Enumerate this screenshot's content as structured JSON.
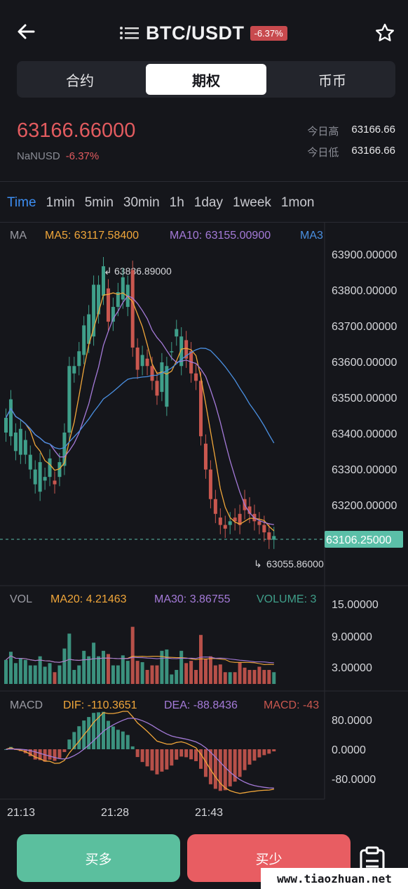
{
  "header": {
    "back_icon": "arrow-left-icon",
    "pair": "BTC/USDT",
    "change_badge": "-6.37%",
    "list_icon": "list-icon",
    "star_icon": "star-icon"
  },
  "segments": [
    {
      "label": "合约",
      "active": false
    },
    {
      "label": "期权",
      "active": true
    },
    {
      "label": "币币",
      "active": false
    }
  ],
  "ticker": {
    "last": "63166.66000",
    "quote_line": "NaNUSD",
    "change": "-6.37%",
    "high_label": "今日高",
    "high": "63166.66",
    "low_label": "今日低",
    "low": "63166.66"
  },
  "timeframes": [
    {
      "label": "Time",
      "active": true
    },
    {
      "label": "1min"
    },
    {
      "label": "5min"
    },
    {
      "label": "30min"
    },
    {
      "label": "1h"
    },
    {
      "label": "1day"
    },
    {
      "label": "1week"
    },
    {
      "label": "1mon"
    }
  ],
  "main_legend": {
    "ma": "MA",
    "ma5": "MA5: 63117.58400",
    "ma10": "MA10: 63155.00900",
    "ma30": "MA3"
  },
  "vol_legend": {
    "vol": "VOL",
    "ma20": "MA20: 4.21463",
    "ma30": "MA30: 3.86755",
    "volume": "VOLUME: 3"
  },
  "macd_legend": {
    "macd": "MACD",
    "dif": "DIF: -110.3651",
    "dea": "DEA: -88.8436",
    "macd_val": "MACD: -43"
  },
  "price_axis": [
    "63900.00000",
    "63800.00000",
    "63700.00000",
    "63600.00000",
    "63500.00000",
    "63400.00000",
    "63300.00000",
    "63200.00000"
  ],
  "vol_axis": [
    "15.00000",
    "9.00000",
    "3.00000"
  ],
  "macd_axis": [
    "80.0000",
    "0.0000",
    "-80.0000"
  ],
  "time_axis": [
    "21:13",
    "21:28",
    "21:43"
  ],
  "annotations": {
    "high": "63836.89000",
    "low": "63055.86000",
    "current": "63106.25000"
  },
  "colors": {
    "up": "#3f9f8a",
    "down": "#c9574f",
    "ma5": "#f0a63a",
    "ma10": "#a47ad8",
    "ma30": "#4a8fe0",
    "accent": "#3d8ef2"
  },
  "chart_data": {
    "type": "candlestick",
    "candles_open_close": [
      [
        63380,
        63420
      ],
      [
        63370,
        63470
      ],
      [
        63330,
        63380
      ],
      [
        63320,
        63390
      ],
      [
        63320,
        63360
      ],
      [
        63280,
        63320
      ],
      [
        63240,
        63280
      ],
      [
        63220,
        63300
      ],
      [
        63250,
        63260
      ],
      [
        63260,
        63310
      ],
      [
        63250,
        63240
      ],
      [
        63260,
        63300
      ],
      [
        63290,
        63380
      ],
      [
        63380,
        63560
      ],
      [
        63540,
        63560
      ],
      [
        63560,
        63600
      ],
      [
        63590,
        63670
      ],
      [
        63620,
        63700
      ],
      [
        63640,
        63780
      ],
      [
        63700,
        63780
      ],
      [
        63750,
        63830
      ],
      [
        63770,
        63680
      ],
      [
        63680,
        63720
      ],
      [
        63720,
        63760
      ],
      [
        63740,
        63800
      ],
      [
        63720,
        63780
      ],
      [
        63820,
        63610
      ],
      [
        63610,
        63550
      ],
      [
        63560,
        63590
      ],
      [
        63580,
        63560
      ],
      [
        63560,
        63520
      ],
      [
        63520,
        63480
      ],
      [
        63490,
        63570
      ],
      [
        63450,
        63560
      ],
      [
        63600,
        63600
      ],
      [
        63640,
        63660
      ],
      [
        63560,
        63640
      ],
      [
        63630,
        63580
      ],
      [
        63600,
        63540
      ],
      [
        63540,
        63520
      ],
      [
        63520,
        63370
      ],
      [
        63350,
        63280
      ],
      [
        63280,
        63200
      ],
      [
        63200,
        63160
      ],
      [
        63150,
        63130
      ],
      [
        63130,
        63120
      ],
      [
        63130,
        63140
      ],
      [
        63150,
        63140
      ],
      [
        63160,
        63130
      ],
      [
        63200,
        63170
      ],
      [
        63180,
        63160
      ],
      [
        63160,
        63140
      ],
      [
        63140,
        63130
      ],
      [
        63130,
        63110
      ],
      [
        63110,
        63090
      ],
      [
        63090,
        63100
      ]
    ],
    "volume_range": [
      0,
      18
    ],
    "macd_range": [
      -100,
      100
    ],
    "price_range": [
      63000,
      63950
    ]
  }
}
